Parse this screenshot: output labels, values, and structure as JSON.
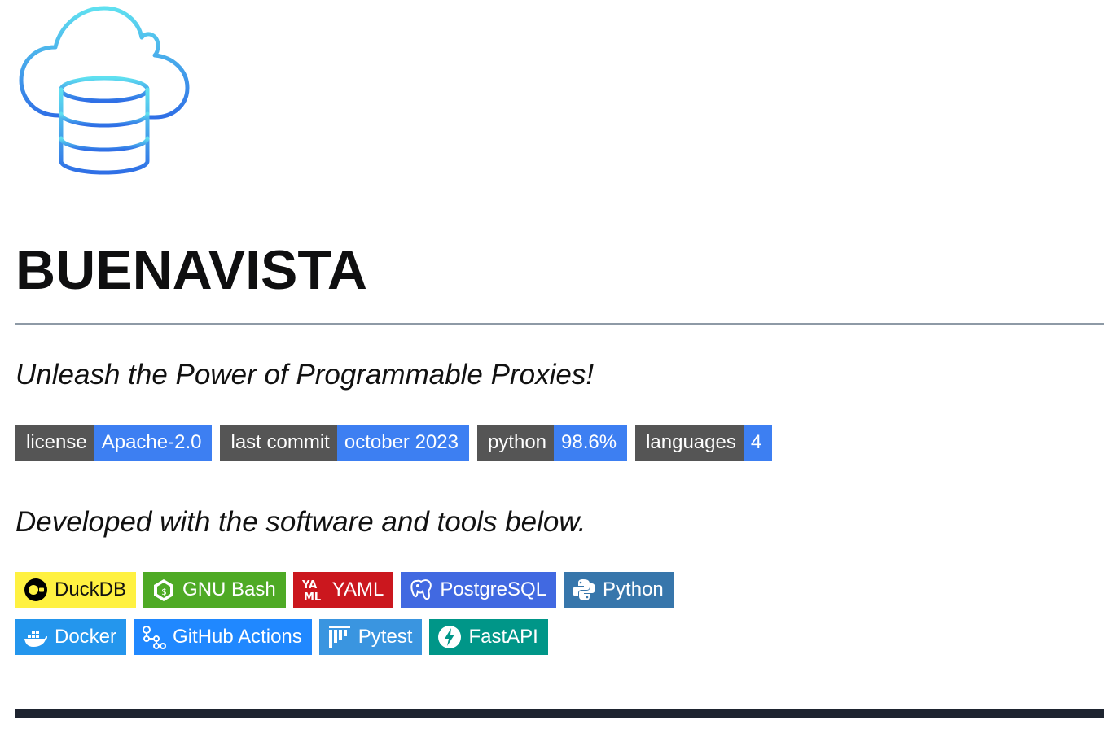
{
  "header": {
    "logo_icon": "cloud-database-icon",
    "title": "BUENAVISTA"
  },
  "tagline": "Unleash the Power of Programmable Proxies!",
  "meta_badges": [
    {
      "label": "license",
      "value": "Apache-2.0",
      "color": "#3d7ff2"
    },
    {
      "label": "last commit",
      "value": "october 2023",
      "color": "#3d7ff2"
    },
    {
      "label": "python",
      "value": "98.6%",
      "color": "#3d7ff2"
    },
    {
      "label": "languages",
      "value": "4",
      "color": "#3d7ff2"
    }
  ],
  "dev_line": "Developed with the software and tools below.",
  "tools": [
    {
      "label": "DuckDB",
      "icon": "duckdb-icon",
      "bg": "#fff141",
      "fg": "#111111"
    },
    {
      "label": "GNU Bash",
      "icon": "bash-icon",
      "bg": "#4eaa25",
      "fg": "#ffffff"
    },
    {
      "label": "YAML",
      "icon": "yaml-icon",
      "bg": "#cb171e",
      "fg": "#ffffff"
    },
    {
      "label": "PostgreSQL",
      "icon": "postgresql-icon",
      "bg": "#4169e1",
      "fg": "#ffffff"
    },
    {
      "label": "Python",
      "icon": "python-icon",
      "bg": "#3776ab",
      "fg": "#ffffff"
    },
    {
      "label": "Docker",
      "icon": "docker-icon",
      "bg": "#2496ed",
      "fg": "#ffffff"
    },
    {
      "label": "GitHub Actions",
      "icon": "github-actions-icon",
      "bg": "#2088ff",
      "fg": "#ffffff"
    },
    {
      "label": "Pytest",
      "icon": "pytest-icon",
      "bg": "#3a95e0",
      "fg": "#ffffff"
    },
    {
      "label": "FastAPI",
      "icon": "fastapi-icon",
      "bg": "#009688",
      "fg": "#ffffff"
    }
  ]
}
